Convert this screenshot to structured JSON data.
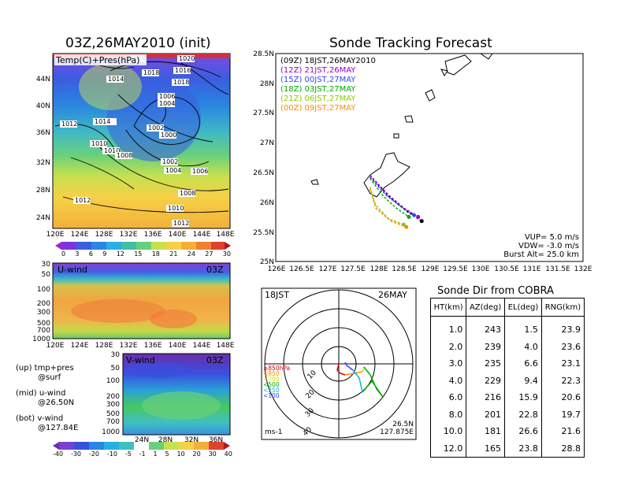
{
  "left_map": {
    "title": "03Z,26MAY2010 (init)",
    "label": "Temp(C)+Pres(hPa)",
    "lat_ticks": [
      "44N",
      "40N",
      "36N",
      "32N",
      "28N",
      "24N"
    ],
    "lon_ticks": [
      "120E",
      "124E",
      "128E",
      "132E",
      "136E",
      "140E",
      "144E",
      "148E"
    ],
    "isobar_labels": [
      "1016",
      "1020",
      "1018",
      "1014",
      "1016",
      "1018",
      "1012",
      "1014",
      "1006",
      "1004",
      "1002",
      "1000",
      "1010",
      "1010",
      "1008",
      "1002",
      "1004",
      "1006",
      "1008",
      "1012",
      "1010",
      "1012"
    ],
    "colorbar_ticks": [
      "0",
      "3",
      "6",
      "9",
      "12",
      "15",
      "18",
      "21",
      "24",
      "27",
      "30"
    ]
  },
  "u_wind": {
    "label": "U-wind",
    "time": "03Z",
    "p_ticks": [
      "30",
      "50",
      "100",
      "200",
      "300",
      "500",
      "700",
      "1000"
    ],
    "lon_ticks": [
      "120E",
      "124E",
      "128E",
      "132E",
      "136E",
      "140E",
      "144E",
      "148E"
    ]
  },
  "v_wind": {
    "label": "V-wind",
    "time": "03Z",
    "p_ticks": [
      "30",
      "50",
      "100",
      "200",
      "300",
      "500",
      "700",
      "1000"
    ],
    "lat_ticks": [
      "24N",
      "28N",
      "32N",
      "36N"
    ],
    "colorbar_ticks": [
      "-40",
      "-30",
      "-20",
      "-10",
      "-5",
      "-1",
      "1",
      "5",
      "10",
      "20",
      "30",
      "40"
    ]
  },
  "notes": {
    "up": "(up) tmp+pres",
    "up2": "@surf",
    "mid": "(mid) u-wind",
    "mid2": "@26.50N",
    "bot": "(bot) v-wind",
    "bot2": "@127.84E"
  },
  "tracking": {
    "title": "Sonde Tracking Forecast",
    "lat_ticks": [
      "28.5N",
      "28N",
      "27.5N",
      "27N",
      "26.5N",
      "26N",
      "25.5N",
      "25N"
    ],
    "lon_ticks": [
      "126E",
      "126.5E",
      "127E",
      "127.5E",
      "128E",
      "128.5E",
      "129E",
      "129.5E",
      "130E",
      "130.5E",
      "131E",
      "131.5E",
      "132E"
    ],
    "legend": [
      {
        "text": "(09Z)  18JST,26MAY2010",
        "color": "#000000"
      },
      {
        "text": "(12Z)  21JST,26MAY",
        "color": "#9900cc"
      },
      {
        "text": "(15Z)  00JST,27MAY",
        "color": "#3344ff"
      },
      {
        "text": "(18Z)  03JST,27MAY",
        "color": "#00aa00"
      },
      {
        "text": "(21Z)  06JST,27MAY",
        "color": "#88cc00"
      },
      {
        "text": "(00Z)  09JST,27MAY",
        "color": "#ff8800"
      }
    ],
    "params": [
      "VUP=  5.0  m/s",
      "VDW= -3.0  m/s",
      "Burst Alt=  25.0  km"
    ]
  },
  "polar": {
    "time": "18JST",
    "date": "26MAY",
    "ring_labels": [
      "10",
      "20",
      "30",
      "40"
    ],
    "legend": [
      {
        "text": "≥850hPa",
        "color": "#dd0000"
      },
      {
        "text": "<850",
        "color": "#ff8800"
      },
      {
        "text": "<700",
        "color": "#dddd00"
      },
      {
        "text": "<500",
        "color": "#00aa00"
      },
      {
        "text": "<250",
        "color": "#00bbdd"
      },
      {
        "text": "<100",
        "color": "#3344ff"
      }
    ],
    "unit": "ms-1",
    "loc_lat": "26.5N",
    "loc_lon": "127.875E"
  },
  "sonde_table": {
    "title": "Sonde Dir from COBRA",
    "headers": [
      "HT(km)",
      "AZ(deg)",
      "EL(deg)",
      "RNG(km)"
    ],
    "rows": [
      [
        "1.0",
        "243",
        "1.5",
        "23.9"
      ],
      [
        "2.0",
        "239",
        "4.0",
        "23.6"
      ],
      [
        "3.0",
        "235",
        "6.6",
        "23.1"
      ],
      [
        "4.0",
        "229",
        "9.4",
        "22.3"
      ],
      [
        "6.0",
        "216",
        "15.9",
        "20.6"
      ],
      [
        "8.0",
        "201",
        "22.8",
        "19.7"
      ],
      [
        "10.0",
        "181",
        "26.6",
        "21.6"
      ],
      [
        "12.0",
        "165",
        "23.8",
        "28.8"
      ]
    ]
  },
  "chart_data": [
    {
      "type": "table",
      "title": "Sonde Dir from COBRA",
      "columns": [
        "HT(km)",
        "AZ(deg)",
        "EL(deg)",
        "RNG(km)"
      ],
      "rows": [
        [
          1.0,
          243,
          1.5,
          23.9
        ],
        [
          2.0,
          239,
          4.0,
          23.6
        ],
        [
          3.0,
          235,
          6.6,
          23.1
        ],
        [
          4.0,
          229,
          9.4,
          22.3
        ],
        [
          6.0,
          216,
          15.9,
          20.6
        ],
        [
          8.0,
          201,
          22.8,
          19.7
        ],
        [
          10.0,
          181,
          26.6,
          21.6
        ],
        [
          12.0,
          165,
          23.8,
          28.8
        ]
      ]
    },
    {
      "type": "line",
      "title": "Sonde Tracking Forecast",
      "xlim": [
        126,
        132
      ],
      "ylim": [
        25,
        28.5
      ],
      "series": [
        {
          "name": "(09Z) 18JST,26MAY2010",
          "x": [
            127.84,
            128.2,
            128.55,
            128.85
          ],
          "y": [
            26.45,
            26.1,
            25.85,
            25.68
          ]
        },
        {
          "name": "(12Z) 21JST,26MAY",
          "x": [
            127.84,
            128.2,
            128.5,
            128.78
          ],
          "y": [
            26.45,
            26.12,
            25.9,
            25.75
          ]
        },
        {
          "name": "(15Z) 00JST,27MAY",
          "x": [
            127.84,
            128.15,
            128.45,
            128.7
          ],
          "y": [
            26.42,
            26.12,
            25.92,
            25.78
          ]
        },
        {
          "name": "(18Z) 03JST,27MAY",
          "x": [
            127.84,
            128.1,
            128.35,
            128.6
          ],
          "y": [
            26.4,
            26.1,
            25.9,
            25.75
          ]
        },
        {
          "name": "(21Z) 06JST,27MAY",
          "x": [
            127.84,
            127.95,
            128.2,
            128.5
          ],
          "y": [
            26.25,
            25.95,
            25.72,
            25.62
          ]
        },
        {
          "name": "(00Z) 09JST,27MAY",
          "x": [
            127.84,
            127.95,
            128.25,
            128.55
          ],
          "y": [
            26.22,
            25.9,
            25.68,
            25.58
          ]
        }
      ]
    }
  ]
}
